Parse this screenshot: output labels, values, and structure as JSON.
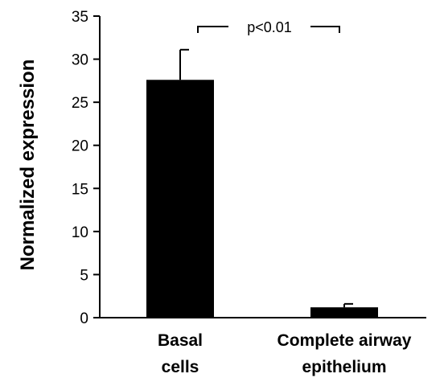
{
  "chart_data": {
    "type": "bar",
    "categories": [
      [
        "Basal",
        "cells"
      ],
      [
        "Complete airway",
        "epithelium"
      ]
    ],
    "values": [
      27.6,
      1.2
    ],
    "errors": [
      3.5,
      0.4
    ],
    "ylabel": "Normalized expression",
    "xlabel": "",
    "title": "",
    "ylim": [
      0,
      35
    ],
    "yticks": [
      0,
      5,
      10,
      15,
      20,
      25,
      30,
      35
    ],
    "grid": false,
    "bar_color": "#000000",
    "annotation": "p<0.01"
  }
}
